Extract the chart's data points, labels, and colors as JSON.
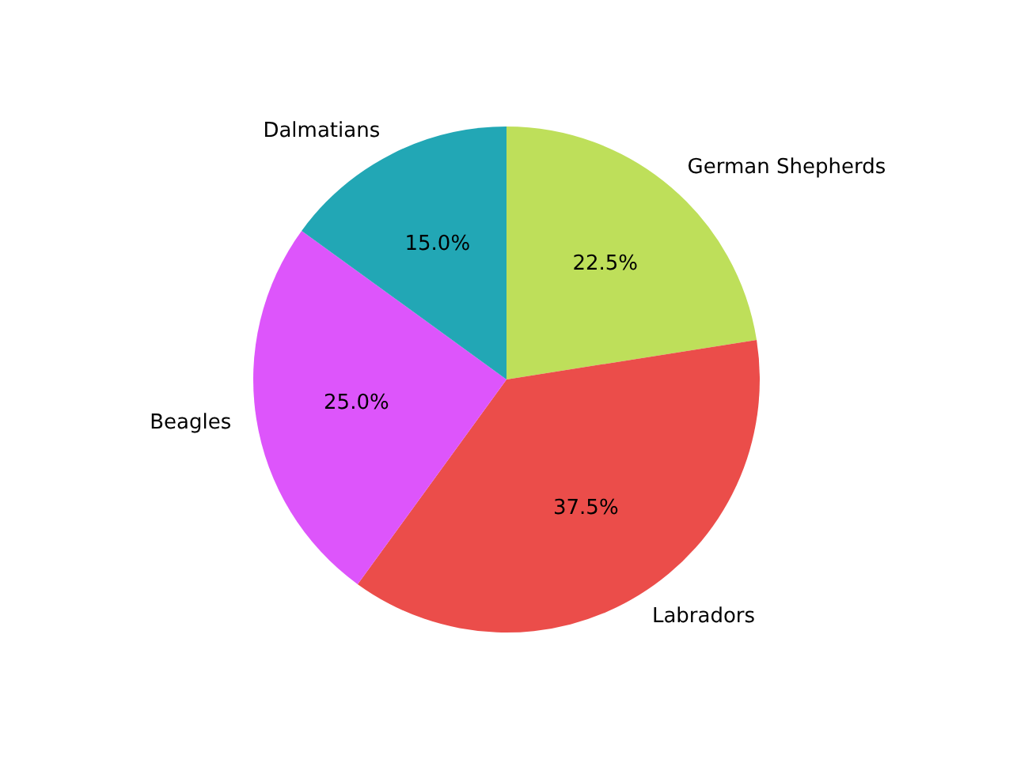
{
  "chart_data": {
    "type": "pie",
    "categories": [
      "German Shepherds",
      "Labradors",
      "Beagles",
      "Dalmatians"
    ],
    "values": [
      22.5,
      37.5,
      25,
      15
    ],
    "colors": [
      "#bedf5a",
      "#eb4d4a",
      "#dd55fb",
      "#22a7b5"
    ],
    "value_labels": [
      "22.5%",
      "37.5%",
      "25.0%",
      "15.0%"
    ],
    "legend": false
  }
}
